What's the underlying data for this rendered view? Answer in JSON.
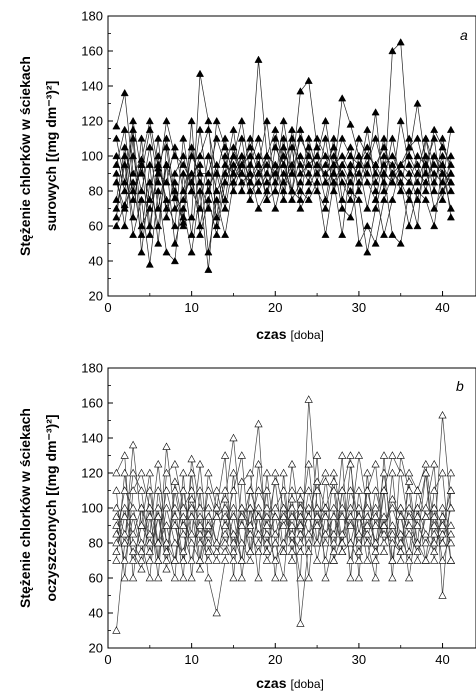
{
  "chart_data": [
    {
      "id": "a",
      "type": "line",
      "panel_label": "a",
      "ylabel_line1": "Stężenie chlorków w ściekach",
      "ylabel_line2": "surowych [(mg dm⁻³)²]",
      "xlabel_bold": "czas",
      "xlabel_unit": "[doba]",
      "xlim": [
        0,
        44
      ],
      "ylim": [
        20,
        180
      ],
      "xticks": [
        0,
        10,
        20,
        30,
        40
      ],
      "yticks": [
        20,
        40,
        60,
        80,
        100,
        120,
        140,
        160,
        180
      ],
      "marker": "filled-triangle",
      "x": [
        1,
        2,
        3,
        4,
        5,
        6,
        7,
        8,
        9,
        10,
        11,
        12,
        13,
        14,
        15,
        16,
        17,
        18,
        19,
        20,
        21,
        22,
        23,
        24,
        25,
        26,
        27,
        28,
        29,
        30,
        31,
        32,
        33,
        34,
        35,
        36,
        37,
        38,
        39,
        40,
        41
      ],
      "series": [
        {
          "values": [
            117,
            136,
            90,
            98,
            120,
            93,
            110,
            76,
            62,
            65,
            147,
            120,
            60,
            90,
            100,
            120,
            90,
            155,
            100,
            85,
            120,
            90,
            137,
            143,
            105,
            85,
            90,
            133,
            118,
            100,
            90,
            125,
            80,
            160,
            165,
            100,
            130,
            95,
            90,
            85,
            115
          ]
        },
        {
          "values": [
            100,
            80,
            115,
            60,
            70,
            90,
            85,
            105,
            80,
            100,
            90,
            90,
            110,
            95,
            90,
            100,
            85,
            95,
            120,
            80,
            105,
            90,
            110,
            100,
            95,
            90,
            95,
            100,
            90,
            110,
            100,
            95,
            105,
            90,
            95,
            100,
            90,
            110,
            95,
            90,
            85
          ]
        },
        {
          "values": [
            75,
            105,
            80,
            95,
            75,
            110,
            65,
            90,
            100,
            80,
            115,
            80,
            95,
            75,
            105,
            90,
            110,
            95,
            75,
            105,
            95,
            110,
            90,
            95,
            100,
            85,
            110,
            75,
            95,
            90,
            115,
            85,
            95,
            100,
            90,
            85,
            100,
            95,
            110,
            75,
            100
          ]
        },
        {
          "values": [
            90,
            60,
            100,
            80,
            105,
            70,
            95,
            80,
            65,
            105,
            85,
            70,
            120,
            105,
            90,
            110,
            80,
            85,
            100,
            95,
            80,
            115,
            95,
            85,
            110,
            100,
            85,
            95,
            105,
            80,
            95,
            110,
            90,
            85,
            120,
            95,
            85,
            100,
            80,
            110,
            90
          ]
        },
        {
          "values": [
            70,
            95,
            65,
            110,
            60,
            95,
            75,
            60,
            110,
            80,
            70,
            100,
            80,
            90,
            115,
            80,
            95,
            110,
            85,
            90,
            100,
            75,
            85,
            110,
            90,
            95,
            105,
            85,
            75,
            100,
            85,
            75,
            100,
            95,
            80,
            110,
            95,
            80,
            100,
            90,
            70
          ]
        },
        {
          "values": [
            60,
            72,
            85,
            55,
            95,
            50,
            105,
            70,
            75,
            90,
            60,
            85,
            65,
            100,
            80,
            95,
            100,
            80,
            90,
            110,
            85,
            95,
            80,
            75,
            85,
            110,
            80,
            95,
            85,
            95,
            70,
            95,
            85,
            110,
            85,
            75,
            90,
            85,
            100,
            95,
            80
          ]
        },
        {
          "values": [
            65,
            100,
            55,
            75,
            38,
            80,
            45,
            40,
            90,
            55,
            95,
            45,
            75,
            55,
            85,
            100,
            75,
            90,
            95,
            70,
            90,
            80,
            100,
            90,
            80,
            70,
            95,
            70,
            65,
            85,
            100,
            80,
            55,
            75,
            95,
            90,
            75,
            95,
            70,
            80,
            90
          ]
        },
        {
          "values": [
            85,
            70,
            110,
            45,
            85,
            60,
            95,
            50,
            70,
            45,
            80,
            35,
            90,
            70,
            95,
            85,
            90,
            70,
            80,
            95,
            75,
            105,
            70,
            80,
            95,
            75,
            100,
            90,
            80,
            75,
            45,
            70,
            90,
            55,
            50,
            80,
            60,
            110,
            85,
            100,
            65
          ]
        },
        {
          "values": [
            95,
            115,
            75,
            95,
            55,
            100,
            70,
            85,
            60,
            120,
            55,
            75,
            55,
            85,
            100,
            90,
            85,
            100,
            75,
            80,
            110,
            80,
            75,
            105,
            85,
            55,
            85,
            55,
            95,
            50,
            60,
            50,
            75,
            90,
            85,
            60,
            80,
            75,
            60,
            95,
            85
          ]
        },
        {
          "values": [
            110,
            85,
            120,
            90,
            115,
            85,
            120,
            100,
            95,
            85,
            100,
            115,
            90,
            110,
            85,
            95,
            105,
            90,
            100,
            115,
            95,
            80,
            115,
            95,
            100,
            120,
            90,
            110,
            100,
            95,
            105,
            90,
            110,
            85,
            95,
            105,
            110,
            90,
            115,
            105,
            95
          ]
        }
      ]
    },
    {
      "id": "b",
      "type": "line",
      "panel_label": "b",
      "ylabel_line1": "Stężenie chlorków w ściekach",
      "ylabel_line2": "oczyszczonych [(mg dm⁻³)²]",
      "xlabel_bold": "czas",
      "xlabel_unit": "[doba]",
      "xlim": [
        0,
        44
      ],
      "ylim": [
        20,
        180
      ],
      "xticks": [
        0,
        10,
        20,
        30,
        40
      ],
      "yticks": [
        20,
        40,
        60,
        80,
        100,
        120,
        140,
        160,
        180
      ],
      "marker": "open-triangle",
      "x": [
        1,
        2,
        3,
        4,
        5,
        6,
        7,
        8,
        9,
        10,
        11,
        12,
        13,
        14,
        15,
        16,
        17,
        18,
        19,
        20,
        21,
        22,
        23,
        24,
        25,
        26,
        27,
        28,
        29,
        30,
        31,
        32,
        33,
        34,
        35,
        36,
        37,
        38,
        39,
        40,
        41
      ],
      "series": [
        {
          "values": [
            30,
            80,
            136,
            90,
            120,
            70,
            135,
            95,
            60,
            128,
            100,
            100,
            80,
            105,
            140,
            90,
            110,
            148,
            75,
            120,
            100,
            90,
            60,
            162,
            100,
            80,
            120,
            95,
            90,
            130,
            100,
            80,
            110,
            130,
            120,
            90,
            80,
            120,
            80,
            153,
            100
          ]
        },
        {
          "values": [
            80,
            100,
            70,
            90,
            80,
            100,
            65,
            110,
            85,
            70,
            95,
            80,
            70,
            95,
            80,
            100,
            85,
            75,
            95,
            85,
            100,
            80,
            95,
            75,
            100,
            85,
            95,
            80,
            95,
            80,
            90,
            100,
            80,
            90,
            80,
            100,
            90,
            80,
            95,
            85,
            90
          ]
        },
        {
          "values": [
            90,
            70,
            95,
            75,
            100,
            80,
            90,
            70,
            95,
            80,
            70,
            95,
            80,
            75,
            95,
            70,
            100,
            85,
            80,
            95,
            75,
            100,
            85,
            95,
            80,
            100,
            70,
            85,
            100,
            75,
            95,
            80,
            90,
            100,
            85,
            70,
            100,
            85,
            75,
            95,
            80
          ]
        },
        {
          "values": [
            75,
            95,
            85,
            100,
            70,
            95,
            75,
            100,
            70,
            95,
            85,
            70,
            100,
            80,
            70,
            95,
            75,
            95,
            70,
            80,
            95,
            85,
            75,
            100,
            70,
            95,
            85,
            100,
            70,
            95,
            85,
            75,
            95,
            70,
            100,
            85,
            75,
            95,
            100,
            70,
            85
          ]
        },
        {
          "values": [
            100,
            85,
            75,
            65,
            95,
            70,
            100,
            80,
            75,
            100,
            65,
            90,
            75,
            85,
            100,
            80,
            70,
            100,
            85,
            70,
            80,
            95,
            100,
            85,
            95,
            70,
            100,
            75,
            80,
            100,
            70,
            95,
            85,
            80,
            75,
            95,
            100,
            70,
            85,
            80,
            100
          ]
        },
        {
          "values": [
            85,
            110,
            100,
            80,
            60,
            110,
            80,
            60,
            120,
            60,
            110,
            60,
            40,
            70,
            120,
            60,
            100,
            60,
            120,
            80,
            60,
            110,
            34,
            80,
            130,
            60,
            80,
            130,
            60,
            110,
            80,
            60,
            130,
            70,
            100,
            60,
            95,
            120,
            70,
            100,
            70
          ]
        },
        {
          "values": [
            110,
            60,
            110,
            120,
            100,
            60,
            120,
            125,
            100,
            110,
            70,
            120,
            100,
            130,
            60,
            115,
            120,
            80,
            110,
            60,
            120,
            70,
            110,
            60,
            110,
            120,
            70,
            110,
            130,
            60,
            120,
            70,
            110,
            60,
            130,
            110,
            70,
            100,
            125,
            50,
            110
          ]
        },
        {
          "values": [
            120,
            130,
            60,
            100,
            85,
            125,
            80,
            70,
            110,
            85,
            125,
            75,
            110,
            90,
            110,
            130,
            75,
            125,
            90,
            115,
            75,
            125,
            90,
            125,
            80,
            115,
            110,
            75,
            125,
            85,
            110,
            125,
            75,
            120,
            70,
            120,
            110,
            125,
            90,
            80,
            120
          ]
        },
        {
          "values": [
            70,
            120,
            80,
            70,
            110,
            80,
            110,
            90,
            70,
            120,
            80,
            110,
            95,
            100,
            85,
            70,
            110,
            95,
            75,
            100,
            110,
            75,
            105,
            95,
            115,
            100,
            75,
            110,
            80,
            70,
            110,
            90,
            120,
            85,
            75,
            115,
            80,
            70,
            110,
            120,
            70
          ]
        },
        {
          "values": [
            95,
            80,
            120,
            110,
            75,
            95,
            70,
            115,
            90,
            105,
            90,
            85,
            95,
            110,
            75,
            100,
            90,
            110,
            100,
            95,
            90,
            105,
            80,
            110,
            90,
            100,
            115,
            80,
            110,
            95,
            80,
            110,
            90,
            105,
            95,
            75,
            110,
            95,
            100,
            90,
            110
          ]
        }
      ]
    }
  ]
}
